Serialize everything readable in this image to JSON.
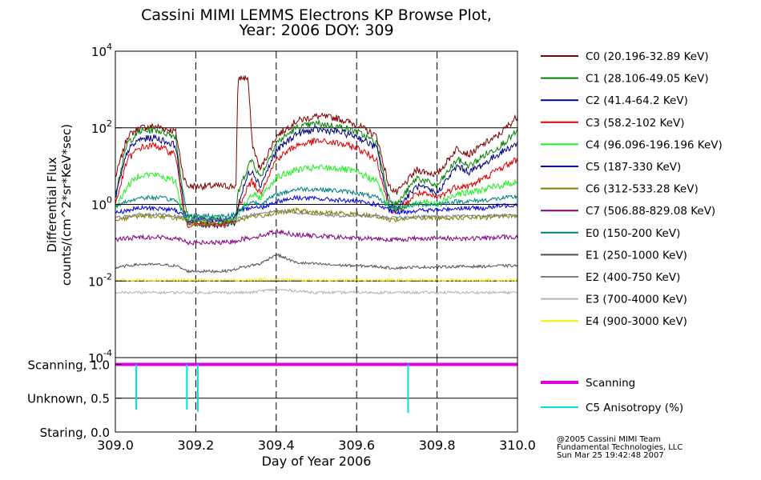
{
  "title": {
    "line1": "Cassini MIMI LEMMS Electrons KP Browse Plot,",
    "line2": "Year: 2006 DOY: 309"
  },
  "credit": {
    "line1": "@2005 Cassini MIMI Team",
    "line2": "Fundamental Technologies, LLC",
    "line3": "Sun Mar 25 19:42:48 2007"
  },
  "chart_data": [
    {
      "type": "line",
      "ylabel_line1": "Differential Flux",
      "ylabel_line2": "counts/(cm^2*sr*KeV*sec)",
      "y_scale": "log",
      "ylim": [
        0.0001,
        10000
      ],
      "y_ticks": [
        {
          "value": 10000,
          "base": "10",
          "exp": "4"
        },
        {
          "value": 100,
          "base": "10",
          "exp": "2"
        },
        {
          "value": 1,
          "base": "10",
          "exp": "0"
        },
        {
          "value": 0.01,
          "base": "10",
          "exp": "-2"
        },
        {
          "value": 0.0001,
          "base": "10",
          "exp": "-4"
        }
      ],
      "xlim": [
        309.0,
        310.0
      ],
      "grid": "vertical dashed lines at x ticks, solid horizontal lines at 10^2, 10^0, 10^-2",
      "legend_position": "right",
      "x_sample": [
        309.0,
        309.03,
        309.06,
        309.1,
        309.15,
        309.17,
        309.18,
        309.22,
        309.27,
        309.3,
        309.305,
        309.33,
        309.34,
        309.36,
        309.4,
        309.45,
        309.5,
        309.55,
        309.6,
        309.65,
        309.68,
        309.7,
        309.75,
        309.8,
        309.85,
        309.88,
        309.92,
        309.95,
        310.0
      ],
      "series": [
        {
          "name": "C0 (20.196-32.89 KeV)",
          "color": "#800000",
          "values": [
            5,
            60,
            100,
            110,
            80,
            5,
            3,
            3,
            3,
            3,
            2000,
            2000,
            40,
            8,
            60,
            150,
            200,
            180,
            120,
            60,
            3,
            2,
            8,
            6,
            30,
            20,
            40,
            60,
            200
          ]
        },
        {
          "name": "C1 (28.106-49.05 KeV)",
          "color": "#008000",
          "values": [
            2,
            40,
            80,
            90,
            60,
            1.5,
            0.5,
            0.4,
            0.4,
            0.45,
            2,
            10,
            15,
            5,
            40,
            100,
            130,
            110,
            80,
            40,
            1.5,
            1,
            5,
            3,
            15,
            10,
            20,
            30,
            80
          ]
        },
        {
          "name": "C2 (41.4-64.2 KeV)",
          "color": "#000080",
          "values": [
            1.5,
            25,
            50,
            55,
            35,
            0.8,
            0.35,
            0.3,
            0.3,
            0.35,
            1,
            6,
            8,
            3,
            25,
            70,
            90,
            80,
            60,
            30,
            1,
            0.8,
            3,
            2,
            10,
            7,
            12,
            20,
            40
          ]
        },
        {
          "name": "C3 (58.2-102 KeV)",
          "color": "#e00000",
          "values": [
            1,
            15,
            30,
            35,
            20,
            0.6,
            0.3,
            0.3,
            0.3,
            0.35,
            0.8,
            3,
            4,
            2,
            15,
            35,
            45,
            40,
            30,
            15,
            0.8,
            0.6,
            2,
            1.5,
            3,
            3,
            5,
            8,
            15
          ]
        },
        {
          "name": "C4 (96.096-196.196 KeV)",
          "color": "#20f020",
          "values": [
            0.8,
            3,
            6,
            6,
            4,
            0.5,
            0.4,
            0.4,
            0.4,
            0.45,
            0.6,
            1.2,
            1.8,
            1.5,
            5,
            8,
            9,
            9,
            7,
            4,
            0.8,
            0.7,
            1.2,
            1,
            2,
            2,
            2.5,
            3,
            4
          ]
        },
        {
          "name": "C5 (187-330 KeV)",
          "color": "#0000e0",
          "values": [
            0.6,
            0.7,
            0.8,
            0.8,
            0.7,
            0.5,
            0.4,
            0.4,
            0.4,
            0.5,
            0.6,
            0.8,
            0.9,
            0.8,
            1.2,
            1.5,
            1.4,
            1.3,
            1.2,
            1,
            0.7,
            0.6,
            0.7,
            0.7,
            0.8,
            0.8,
            0.8,
            0.9,
            1
          ]
        },
        {
          "name": "C6 (312-533.28 KeV)",
          "color": "#808000",
          "values": [
            0.4,
            0.45,
            0.5,
            0.5,
            0.45,
            0.4,
            0.3,
            0.3,
            0.3,
            0.35,
            0.4,
            0.45,
            0.5,
            0.5,
            0.6,
            0.7,
            0.6,
            0.6,
            0.55,
            0.5,
            0.4,
            0.4,
            0.45,
            0.45,
            0.45,
            0.45,
            0.45,
            0.5,
            0.5
          ]
        },
        {
          "name": "C7 (506.88-829.08 KeV)",
          "color": "#800080",
          "values": [
            0.12,
            0.13,
            0.14,
            0.14,
            0.13,
            0.12,
            0.1,
            0.1,
            0.1,
            0.11,
            0.12,
            0.13,
            0.14,
            0.15,
            0.2,
            0.16,
            0.15,
            0.14,
            0.13,
            0.13,
            0.12,
            0.12,
            0.13,
            0.13,
            0.13,
            0.13,
            0.13,
            0.14,
            0.14
          ]
        },
        {
          "name": "E0 (150-200 KeV)",
          "color": "#008080",
          "values": [
            0.9,
            1.2,
            1.5,
            1.5,
            1.3,
            0.6,
            0.5,
            0.5,
            0.5,
            0.55,
            0.7,
            1,
            1.2,
            1,
            1.8,
            2.5,
            2.5,
            2.3,
            2,
            1.5,
            0.9,
            0.8,
            1,
            1,
            1.2,
            1.2,
            1.3,
            1.4,
            1.6
          ]
        },
        {
          "name": "E1 (250-1000 KeV)",
          "color": "#505050",
          "values": [
            0.022,
            0.025,
            0.027,
            0.027,
            0.025,
            0.02,
            0.018,
            0.018,
            0.018,
            0.02,
            0.022,
            0.024,
            0.026,
            0.028,
            0.05,
            0.03,
            0.028,
            0.026,
            0.025,
            0.024,
            0.022,
            0.022,
            0.023,
            0.023,
            0.024,
            0.024,
            0.024,
            0.025,
            0.025
          ]
        },
        {
          "name": "E2 (400-750 KeV)",
          "color": "#808080",
          "values": [
            0.45,
            0.5,
            0.55,
            0.55,
            0.5,
            0.45,
            0.4,
            0.4,
            0.4,
            0.42,
            0.45,
            0.5,
            0.55,
            0.55,
            0.7,
            0.6,
            0.55,
            0.5,
            0.5,
            0.5,
            0.45,
            0.45,
            0.48,
            0.48,
            0.5,
            0.5,
            0.5,
            0.52,
            0.52
          ]
        },
        {
          "name": "E3 (700-4000 KeV)",
          "color": "#b4b4b4",
          "values": [
            0.005,
            0.005,
            0.005,
            0.005,
            0.005,
            0.005,
            0.005,
            0.005,
            0.005,
            0.005,
            0.005,
            0.005,
            0.005,
            0.0055,
            0.006,
            0.0055,
            0.005,
            0.005,
            0.005,
            0.005,
            0.005,
            0.005,
            0.005,
            0.005,
            0.005,
            0.005,
            0.005,
            0.005,
            0.005
          ]
        },
        {
          "name": "E4 (900-3000 KeV)",
          "color": "#f0f000",
          "values": [
            0.0105,
            0.0105,
            0.0105,
            0.0105,
            0.0105,
            0.0105,
            0.0105,
            0.0105,
            0.0105,
            0.0105,
            0.0105,
            0.0105,
            0.0105,
            0.011,
            0.011,
            0.0105,
            0.0105,
            0.0105,
            0.0105,
            0.0105,
            0.0105,
            0.0105,
            0.0105,
            0.0105,
            0.0105,
            0.0105,
            0.0105,
            0.0105,
            0.0105
          ]
        }
      ]
    },
    {
      "type": "line",
      "xlabel": "Day of Year 2006",
      "xlim": [
        309.0,
        310.0
      ],
      "x_ticks": [
        "309.0",
        "309.2",
        "309.4",
        "309.6",
        "309.8",
        "310.0"
      ],
      "ylim": [
        0,
        1.1
      ],
      "y_ticks": [
        {
          "value": 1.0,
          "label": "Scanning, 1.0"
        },
        {
          "value": 0.5,
          "label": "Unknown, 0.5"
        },
        {
          "value": 0.0,
          "label": "Staring, 0.0"
        }
      ],
      "legend_position": "right",
      "series": [
        {
          "name": "Scanning",
          "color": "#e000e0",
          "x": [
            309.0,
            310.0
          ],
          "values": [
            1.0,
            1.0
          ]
        },
        {
          "name": "C5 Anisotropy (%)",
          "color": "#00e0e0",
          "spikes": [
            {
              "x": 309.052,
              "low": 0.33
            },
            {
              "x": 309.178,
              "low": 0.33
            },
            {
              "x": 309.205,
              "low": 0.3
            },
            {
              "x": 309.728,
              "low": 0.28
            }
          ]
        }
      ]
    }
  ]
}
